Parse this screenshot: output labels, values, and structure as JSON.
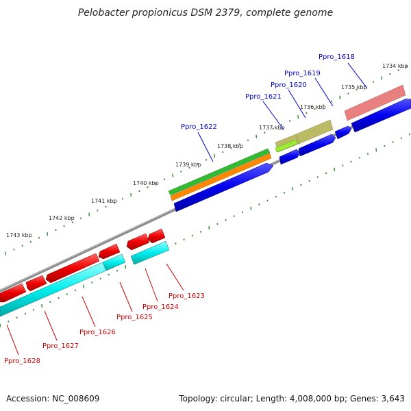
{
  "title": "Pelobacter propionicus DSM 2379, complete genome",
  "accession": "Accession: NC_008609",
  "topology": "Topology: circular; Length: 4,008,000 bp; Genes: 3,643",
  "kbp_labels": [
    "1734 kbp",
    "1735 kbp",
    "1736 kbp",
    "1737 kbp",
    "1738 kbp",
    "1739 kbp",
    "1740 kbp",
    "1741 kbp",
    "1742 kbp",
    "1743 kbp"
  ],
  "top_genes": [
    "Ppro_1618",
    "Ppro_1619",
    "Ppro_1620",
    "Ppro_1621",
    "Ppro_1622"
  ],
  "bottom_genes": [
    "Ppro_1623",
    "Ppro_1624",
    "Ppro_1625",
    "Ppro_1626",
    "Ppro_1627",
    "Ppro_1628"
  ],
  "colors": {
    "top_label": "#0000c8",
    "bottom_label": "#c80000",
    "blue_gene": "#0000ee",
    "red_gene": "#ee0000",
    "cyan_gene": "#00eeee",
    "green_track": "#33bb33",
    "orange_track": "#ff8800",
    "pink_track": "#e88080",
    "olive_track": "#bbbb66",
    "lime_track": "#99ee33",
    "backbone": "#888888",
    "tick": "#338833"
  }
}
